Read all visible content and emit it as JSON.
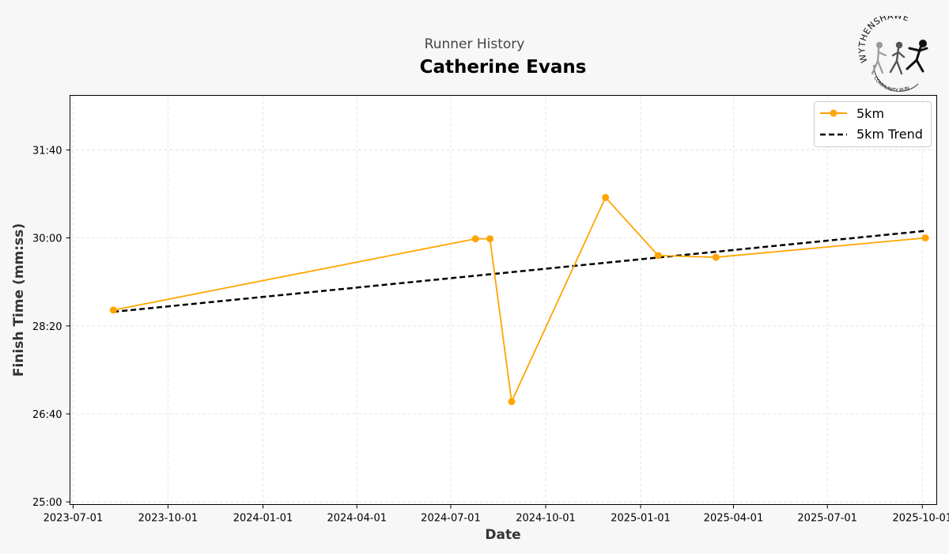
{
  "header": {
    "subtitle": "Runner History",
    "title": "Catherine Evans"
  },
  "logo": {
    "text_top": "WYTHENSHAWE",
    "text_bottom": "COMMUNITY RUN"
  },
  "colors": {
    "series": "#FFA500",
    "trend": "#000000",
    "grid": "#dddddd",
    "background": "#f7f7f7"
  },
  "chart_data": {
    "type": "line",
    "title": "Catherine Evans",
    "subtitle": "Runner History",
    "xlabel": "Date",
    "ylabel": "Finish Time (mm:ss)",
    "x_ticks": [
      "2023-07-01",
      "2023-10-01",
      "2024-01-01",
      "2024-04-01",
      "2024-07-01",
      "2024-10-01",
      "2025-01-01",
      "2025-04-01",
      "2025-07-01",
      "2025-10-01"
    ],
    "y_ticks": [
      "25:00",
      "26:40",
      "28:20",
      "30:00",
      "31:40"
    ],
    "y_tick_seconds": [
      1500,
      1600,
      1700,
      1800,
      1900
    ],
    "xlim": [
      "2023-06-28",
      "2025-10-15"
    ],
    "ylim_seconds": [
      1497,
      1962
    ],
    "grid": true,
    "legend_position": "top-right",
    "series": [
      {
        "name": "5km",
        "style": "line-markers",
        "points": [
          {
            "x": "2023-08-09",
            "y": 1718
          },
          {
            "x": "2024-07-25",
            "y": 1799
          },
          {
            "x": "2024-08-08",
            "y": 1799
          },
          {
            "x": "2024-08-29",
            "y": 1614
          },
          {
            "x": "2024-11-28",
            "y": 1846
          },
          {
            "x": "2025-01-18",
            "y": 1780
          },
          {
            "x": "2025-03-15",
            "y": 1778
          },
          {
            "x": "2025-10-04",
            "y": 1800
          }
        ]
      },
      {
        "name": "5km Trend",
        "style": "dashed",
        "points": [
          {
            "x": "2023-08-09",
            "y": 1716
          },
          {
            "x": "2025-10-04",
            "y": 1808
          }
        ]
      }
    ]
  }
}
